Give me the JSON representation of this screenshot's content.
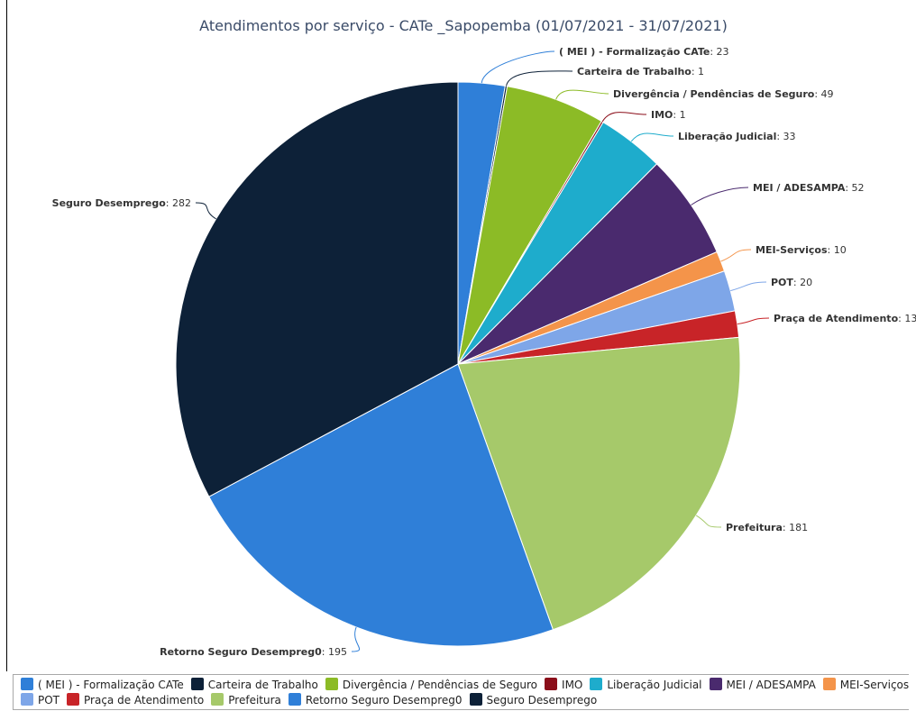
{
  "chart_data": {
    "type": "pie",
    "title": "Atendimentos por serviço - CATe _Sapopemba (01/07/2021 - 31/07/2021)",
    "slices": [
      {
        "name": "( MEI ) - Formalização CATe",
        "value": 23,
        "color": "#2f7fd8"
      },
      {
        "name": "Carteira de Trabalho",
        "value": 1,
        "color": "#0d2138"
      },
      {
        "name": "Divergência / Pendências de Seguro",
        "value": 49,
        "color": "#8cbb26"
      },
      {
        "name": "IMO",
        "value": 1,
        "color": "#8b0e1a"
      },
      {
        "name": "Liberação Judicial",
        "value": 33,
        "color": "#1eaccc"
      },
      {
        "name": "MEI / ADESAMPA",
        "value": 52,
        "color": "#4a2a6e"
      },
      {
        "name": "MEI-Serviços",
        "value": 10,
        "color": "#f4944a"
      },
      {
        "name": "POT",
        "value": 20,
        "color": "#7ea6e8"
      },
      {
        "name": "Praça de Atendimento",
        "value": 13,
        "color": "#c82428"
      },
      {
        "name": "Prefeitura",
        "value": 181,
        "color": "#a6c96a"
      },
      {
        "name": "Retorno Seguro Desempreg0",
        "value": 195,
        "color": "#2f7fd8"
      },
      {
        "name": "Seguro Desemprego",
        "value": 282,
        "color": "#0d2138"
      }
    ],
    "legend_rows": [
      [
        0,
        1,
        2,
        3,
        4,
        5,
        6
      ],
      [
        7,
        8,
        9,
        10,
        11
      ]
    ]
  }
}
